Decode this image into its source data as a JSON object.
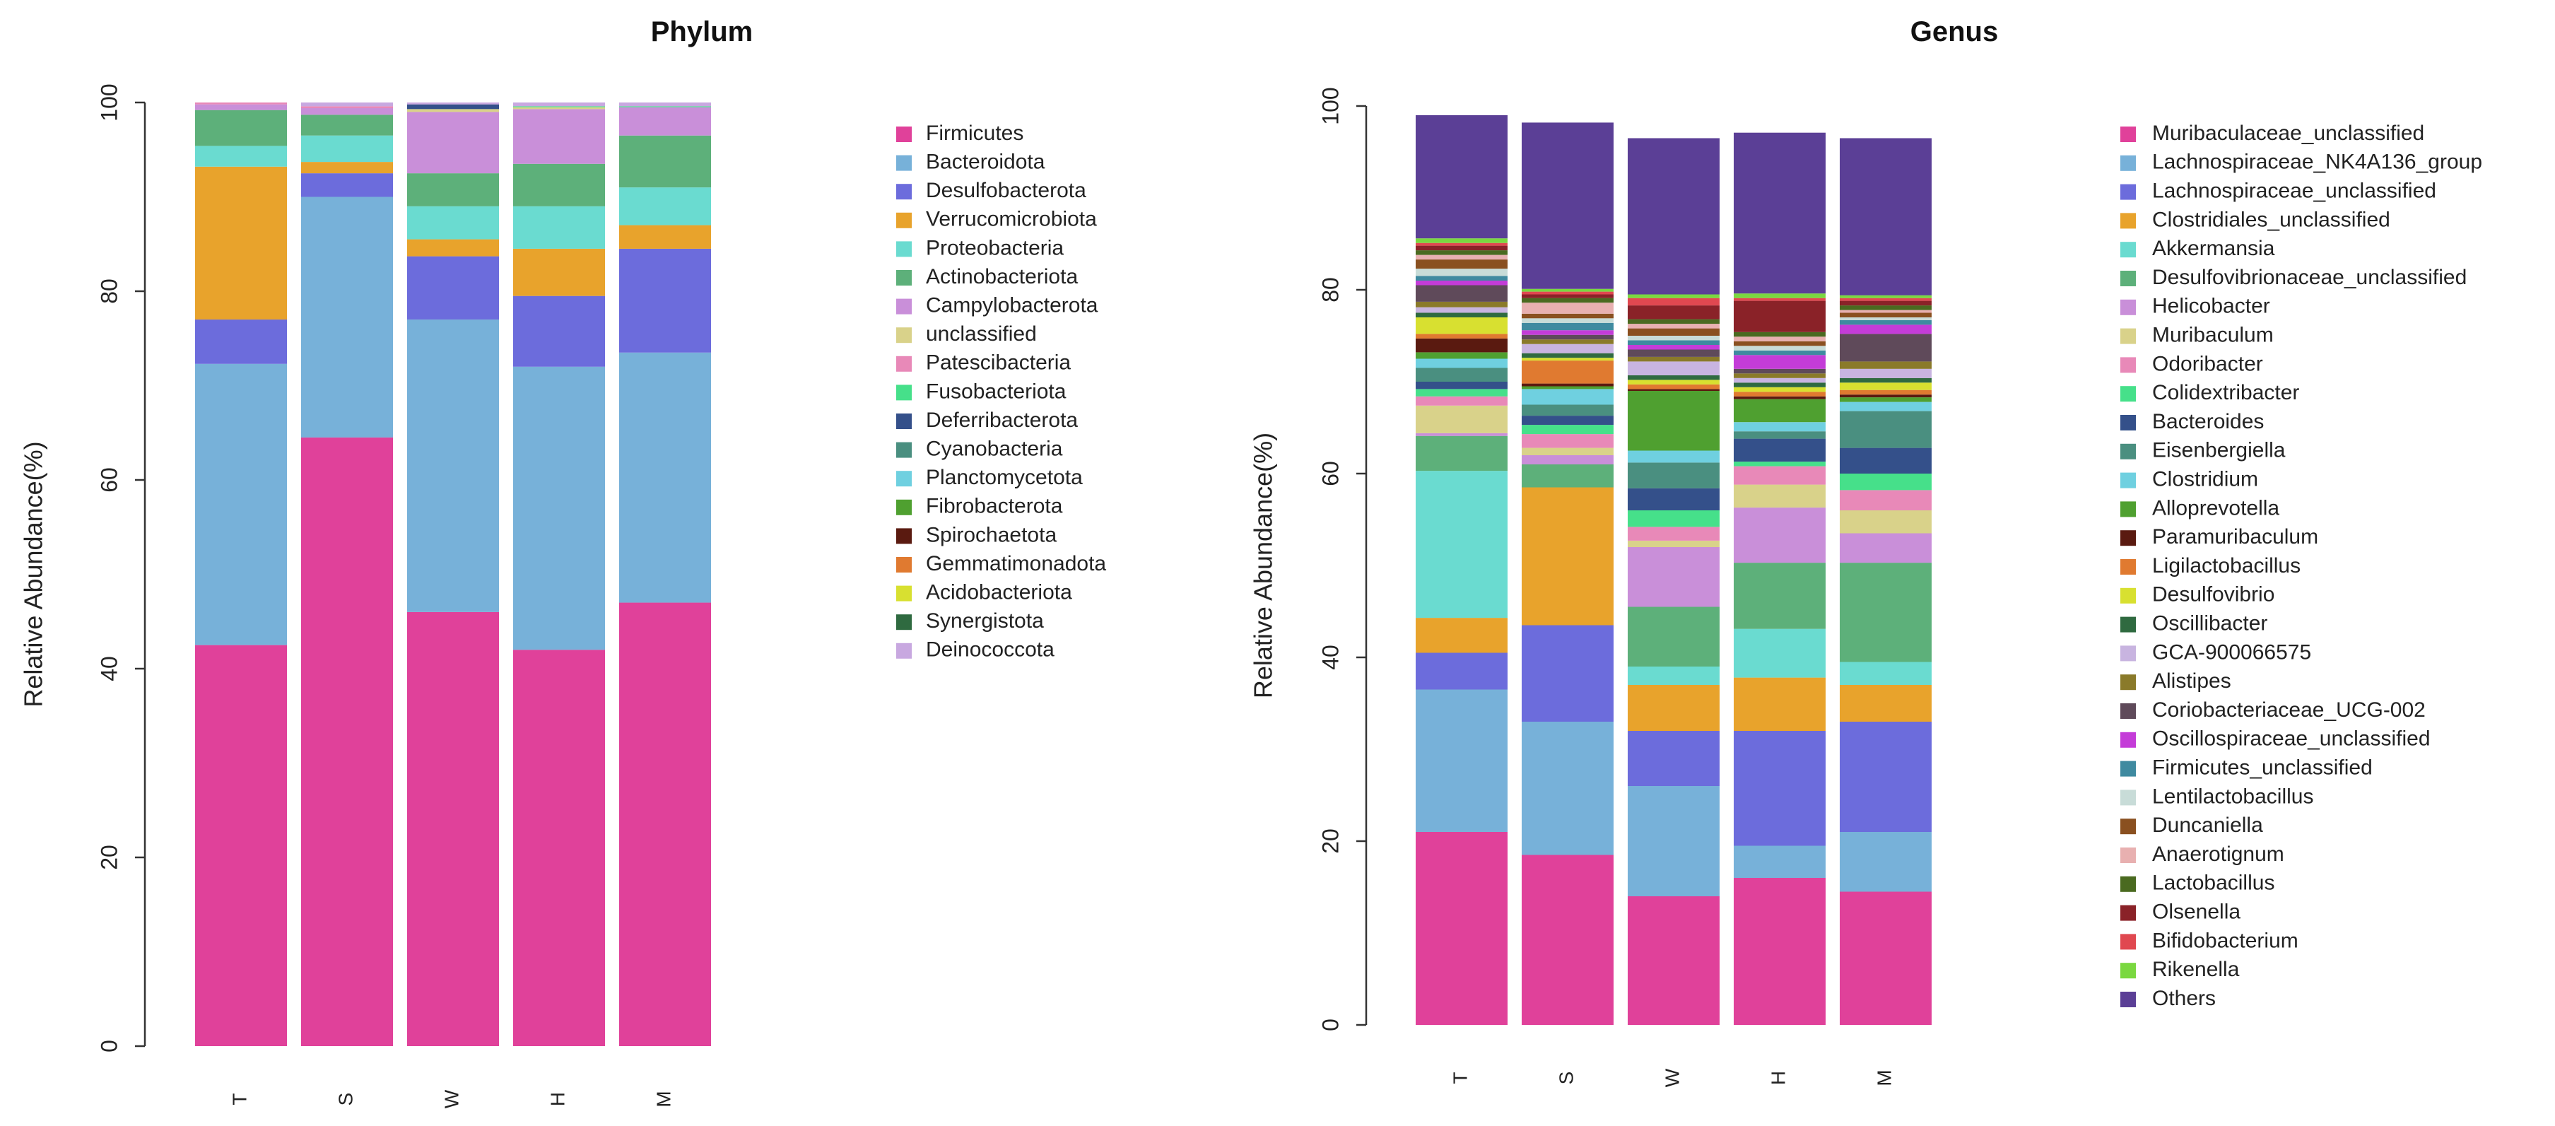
{
  "chart_data": [
    {
      "type": "bar",
      "stacked": true,
      "title": "Phylum",
      "xlabel": "",
      "ylabel": "Relative Abundance(%)",
      "ylim": [
        0,
        100
      ],
      "yticks": [
        0,
        20,
        40,
        60,
        80,
        100
      ],
      "categories": [
        "T",
        "S",
        "W",
        "H",
        "M"
      ],
      "series": [
        {
          "name": "Firmicutes",
          "color": "#e0419a",
          "values": [
            42.5,
            64.5,
            46.0,
            42.0,
            47.0
          ]
        },
        {
          "name": "Bacteroidota",
          "color": "#77b1d9",
          "values": [
            29.8,
            25.5,
            31.0,
            30.0,
            26.5
          ]
        },
        {
          "name": "Desulfobacterota",
          "color": "#6c6cdc",
          "values": [
            4.7,
            2.5,
            6.7,
            7.5,
            11.0
          ]
        },
        {
          "name": "Verrucomicrobiota",
          "color": "#e8a32c",
          "values": [
            16.2,
            1.2,
            1.8,
            5.0,
            2.5
          ]
        },
        {
          "name": "Proteobacteria",
          "color": "#6adbd0",
          "values": [
            2.2,
            2.8,
            3.5,
            4.5,
            4.0
          ]
        },
        {
          "name": "Actinobacteriota",
          "color": "#5db07a",
          "values": [
            3.8,
            2.2,
            3.5,
            4.5,
            5.5
          ]
        },
        {
          "name": "Campylobacterota",
          "color": "#c98fd9",
          "values": [
            0.6,
            0.7,
            6.5,
            5.8,
            3.0
          ]
        },
        {
          "name": "unclassified",
          "color": "#d9d28a",
          "values": [
            0,
            0,
            0.3,
            0.2,
            0
          ]
        },
        {
          "name": "Patescibacteria",
          "color": "#e889b8",
          "values": [
            0.2,
            0.2,
            0,
            0,
            0
          ]
        },
        {
          "name": "Fusobacteriota",
          "color": "#46e08a",
          "values": [
            0,
            0,
            0,
            0.1,
            0.1
          ]
        },
        {
          "name": "Deferribacterota",
          "color": "#34508a",
          "values": [
            0,
            0,
            0.5,
            0,
            0
          ]
        },
        {
          "name": "Cyanobacteria",
          "color": "#4a8f80",
          "values": [
            0,
            0,
            0,
            0,
            0
          ]
        },
        {
          "name": "Planctomycetota",
          "color": "#6fd0e0",
          "values": [
            0,
            0,
            0,
            0,
            0
          ]
        },
        {
          "name": "Fibrobacterota",
          "color": "#4fa030",
          "values": [
            0,
            0,
            0,
            0,
            0
          ]
        },
        {
          "name": "Spirochaetota",
          "color": "#5a1a10",
          "values": [
            0,
            0,
            0,
            0,
            0
          ]
        },
        {
          "name": "Gemmatimonadota",
          "color": "#e07a30",
          "values": [
            0,
            0,
            0,
            0,
            0
          ]
        },
        {
          "name": "Acidobacteriota",
          "color": "#d8e030",
          "values": [
            0,
            0,
            0,
            0,
            0
          ]
        },
        {
          "name": "Synergistota",
          "color": "#2f6a40",
          "values": [
            0,
            0,
            0,
            0,
            0
          ]
        },
        {
          "name": "Deinococcota",
          "color": "#c8a8e0",
          "values": [
            0,
            0.4,
            0.2,
            0.4,
            0.4
          ]
        }
      ]
    },
    {
      "type": "bar",
      "stacked": true,
      "title": "Genus",
      "xlabel": "",
      "ylabel": "Relative Abundance(%)",
      "ylim": [
        0,
        100
      ],
      "yticks": [
        0,
        20,
        40,
        60,
        80,
        100
      ],
      "categories": [
        "T",
        "S",
        "W",
        "H",
        "M"
      ],
      "series": [
        {
          "name": "Muribaculaceae_unclassified",
          "color": "#e0419a",
          "values": [
            21.0,
            18.5,
            14.0,
            16.0,
            14.5
          ]
        },
        {
          "name": "Lachnospiraceae_NK4A136_group",
          "color": "#77b1d9",
          "values": [
            15.5,
            14.5,
            12.0,
            3.5,
            6.5
          ]
        },
        {
          "name": "Lachnospiraceae_unclassified",
          "color": "#6c6cdc",
          "values": [
            4.0,
            10.5,
            6.0,
            12.5,
            12.0
          ]
        },
        {
          "name": "Clostridiales_unclassified",
          "color": "#e8a32c",
          "values": [
            3.8,
            15.0,
            5.0,
            5.8,
            4.0
          ]
        },
        {
          "name": "Akkermansia",
          "color": "#6adbd0",
          "values": [
            16.0,
            0,
            2.0,
            5.3,
            2.5
          ]
        },
        {
          "name": "Desulfovibrionaceae_unclassified",
          "color": "#5db07a",
          "values": [
            3.8,
            2.5,
            6.5,
            7.2,
            10.8
          ]
        },
        {
          "name": "Helicobacter",
          "color": "#c98fd9",
          "values": [
            0.3,
            1.0,
            6.5,
            6.0,
            3.2
          ]
        },
        {
          "name": "Muribaculum",
          "color": "#d9d28a",
          "values": [
            3.0,
            0.8,
            0.7,
            2.5,
            2.5
          ]
        },
        {
          "name": "Odoribacter",
          "color": "#e889b8",
          "values": [
            1.0,
            1.5,
            1.5,
            2.0,
            2.2
          ]
        },
        {
          "name": "Colidextribacter",
          "color": "#46e08a",
          "values": [
            0.8,
            1.0,
            1.8,
            0.5,
            1.8
          ]
        },
        {
          "name": "Bacteroides",
          "color": "#34508a",
          "values": [
            0.8,
            1.0,
            2.4,
            2.5,
            2.8
          ]
        },
        {
          "name": "Eisenbergiella",
          "color": "#4a8f80",
          "values": [
            1.5,
            1.2,
            2.8,
            0.8,
            4.0
          ]
        },
        {
          "name": "Clostridium",
          "color": "#6fd0e0",
          "values": [
            1.0,
            1.7,
            1.3,
            1.0,
            1.0
          ]
        },
        {
          "name": "Alloprevotella",
          "color": "#4fa030",
          "values": [
            0.7,
            0.3,
            6.5,
            2.5,
            0.5
          ]
        },
        {
          "name": "Paramuribaculum",
          "color": "#5a1a10",
          "values": [
            1.5,
            0.3,
            0.2,
            0.3,
            0.3
          ]
        },
        {
          "name": "Ligilactobacillus",
          "color": "#e07a30",
          "values": [
            0.5,
            2.5,
            0.5,
            0.5,
            0.5
          ]
        },
        {
          "name": "Desulfovibrio",
          "color": "#d8e030",
          "values": [
            1.8,
            0.3,
            0.5,
            0.5,
            0.8
          ]
        },
        {
          "name": "Oscillibacter",
          "color": "#2f6a40",
          "values": [
            0.5,
            0.5,
            0.5,
            0.5,
            0.5
          ]
        },
        {
          "name": "GCA-900066575",
          "color": "#c8b4e0",
          "values": [
            0.6,
            1.0,
            1.5,
            0.5,
            1.0
          ]
        },
        {
          "name": "Alistipes",
          "color": "#8a7a2a",
          "values": [
            0.6,
            0.5,
            0.5,
            0.5,
            0.8
          ]
        },
        {
          "name": "Coriobacteriaceae_UCG-002",
          "color": "#5f4a5a",
          "values": [
            1.8,
            0.5,
            0.8,
            0.5,
            3.0
          ]
        },
        {
          "name": "Oscillospiraceae_unclassified",
          "color": "#c43cd8",
          "values": [
            0.5,
            0.5,
            0.5,
            1.5,
            1.0
          ]
        },
        {
          "name": "Firmicutes_unclassified",
          "color": "#3f8aa0",
          "values": [
            0.5,
            0.8,
            0.5,
            0.5,
            0.5
          ]
        },
        {
          "name": "Lentilactobacillus",
          "color": "#c8dcd8",
          "values": [
            0.8,
            0.5,
            0.5,
            0.5,
            0.3
          ]
        },
        {
          "name": "Duncaniella",
          "color": "#8a5020",
          "values": [
            1.0,
            0.5,
            0.8,
            0.5,
            0.5
          ]
        },
        {
          "name": "Anaerotignum",
          "color": "#e8b0b0",
          "values": [
            0.5,
            1.2,
            0.5,
            0.5,
            0.3
          ]
        },
        {
          "name": "Lactobacillus",
          "color": "#4a6a20",
          "values": [
            0.5,
            0.5,
            0.5,
            0.5,
            0.5
          ]
        },
        {
          "name": "Olsenella",
          "color": "#8a2228",
          "values": [
            0.5,
            0.4,
            1.5,
            3.4,
            0.5
          ]
        },
        {
          "name": "Bifidobacterium",
          "color": "#e04850",
          "values": [
            0.3,
            0.3,
            0.8,
            0.3,
            0.3
          ]
        },
        {
          "name": "Rikenella",
          "color": "#7ad840",
          "values": [
            0.5,
            0.3,
            0.4,
            0.5,
            0.3
          ]
        },
        {
          "name": "Others",
          "color": "#5b3f96",
          "values": [
            13.4,
            18.1,
            17.0,
            17.5,
            17.1
          ]
        }
      ]
    }
  ]
}
